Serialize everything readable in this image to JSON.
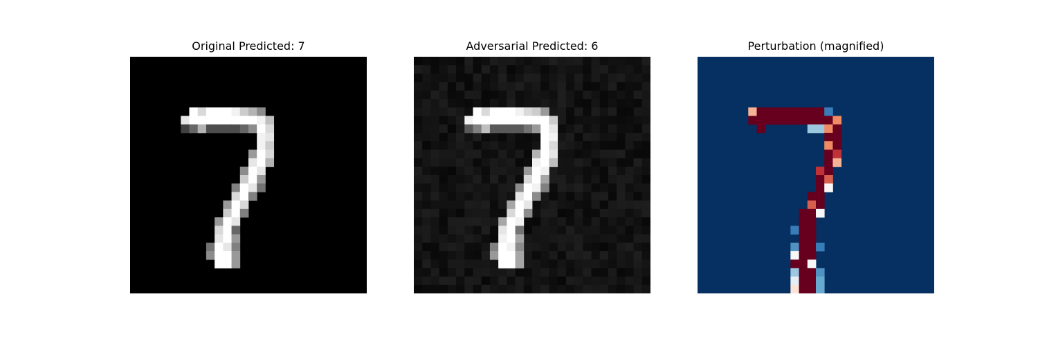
{
  "panels": [
    {
      "title": "Original Predicted: 7",
      "colormap": "gray",
      "background": "#000000",
      "pixels": [
        [
          6,
          7,
          1.0
        ],
        [
          6,
          8,
          0.85
        ],
        [
          6,
          9,
          1.0
        ],
        [
          6,
          10,
          1.0
        ],
        [
          6,
          11,
          1.0
        ],
        [
          6,
          12,
          0.95
        ],
        [
          6,
          13,
          0.8
        ],
        [
          6,
          14,
          0.7
        ],
        [
          6,
          15,
          0.55
        ],
        [
          7,
          6,
          0.9
        ],
        [
          7,
          7,
          1.0
        ],
        [
          7,
          8,
          1.0
        ],
        [
          7,
          9,
          1.0
        ],
        [
          7,
          10,
          1.0
        ],
        [
          7,
          11,
          1.0
        ],
        [
          7,
          12,
          1.0
        ],
        [
          7,
          13,
          1.0
        ],
        [
          7,
          14,
          1.0
        ],
        [
          7,
          15,
          0.95
        ],
        [
          7,
          16,
          0.75
        ],
        [
          8,
          6,
          0.25
        ],
        [
          8,
          7,
          0.4
        ],
        [
          8,
          8,
          0.7
        ],
        [
          8,
          9,
          0.3
        ],
        [
          8,
          10,
          0.3
        ],
        [
          8,
          11,
          0.3
        ],
        [
          8,
          12,
          0.3
        ],
        [
          8,
          13,
          0.4
        ],
        [
          8,
          14,
          0.55
        ],
        [
          8,
          15,
          1.0
        ],
        [
          8,
          16,
          0.85
        ],
        [
          9,
          15,
          0.95
        ],
        [
          9,
          16,
          0.9
        ],
        [
          10,
          15,
          0.95
        ],
        [
          10,
          16,
          0.8
        ],
        [
          11,
          14,
          0.6
        ],
        [
          11,
          15,
          1.0
        ],
        [
          11,
          16,
          0.85
        ],
        [
          12,
          14,
          0.9
        ],
        [
          12,
          15,
          1.0
        ],
        [
          12,
          16,
          0.7
        ],
        [
          13,
          13,
          0.55
        ],
        [
          13,
          14,
          1.0
        ],
        [
          13,
          15,
          0.9
        ],
        [
          14,
          13,
          0.8
        ],
        [
          14,
          14,
          1.0
        ],
        [
          14,
          15,
          0.6
        ],
        [
          15,
          12,
          0.5
        ],
        [
          15,
          13,
          1.0
        ],
        [
          15,
          14,
          0.9
        ],
        [
          15,
          15,
          0.45
        ],
        [
          16,
          12,
          0.85
        ],
        [
          16,
          13,
          1.0
        ],
        [
          16,
          14,
          0.5
        ],
        [
          17,
          11,
          0.6
        ],
        [
          17,
          12,
          1.0
        ],
        [
          17,
          13,
          0.85
        ],
        [
          18,
          11,
          0.8
        ],
        [
          18,
          12,
          1.0
        ],
        [
          18,
          13,
          0.5
        ],
        [
          19,
          10,
          0.6
        ],
        [
          19,
          11,
          1.0
        ],
        [
          19,
          12,
          0.9
        ],
        [
          20,
          10,
          0.85
        ],
        [
          20,
          11,
          1.0
        ],
        [
          20,
          12,
          0.4
        ],
        [
          21,
          10,
          0.9
        ],
        [
          21,
          11,
          1.0
        ],
        [
          21,
          12,
          0.6
        ],
        [
          22,
          9,
          0.45
        ],
        [
          22,
          10,
          1.0
        ],
        [
          22,
          11,
          0.9
        ],
        [
          22,
          12,
          0.5
        ],
        [
          23,
          9,
          0.55
        ],
        [
          23,
          10,
          1.0
        ],
        [
          23,
          11,
          1.0
        ],
        [
          23,
          12,
          0.6
        ],
        [
          24,
          10,
          1.0
        ],
        [
          24,
          11,
          1.0
        ],
        [
          24,
          12,
          0.6
        ]
      ]
    },
    {
      "title": "Adversarial Predicted: 6",
      "colormap": "gray",
      "background": "#141414",
      "pixels": [
        [
          6,
          7,
          1.0
        ],
        [
          6,
          8,
          0.85
        ],
        [
          6,
          9,
          1.0
        ],
        [
          6,
          10,
          1.0
        ],
        [
          6,
          11,
          1.0
        ],
        [
          6,
          12,
          0.95
        ],
        [
          6,
          13,
          0.85
        ],
        [
          6,
          14,
          0.8
        ],
        [
          6,
          15,
          0.6
        ],
        [
          7,
          6,
          0.95
        ],
        [
          7,
          7,
          1.0
        ],
        [
          7,
          8,
          1.0
        ],
        [
          7,
          9,
          1.0
        ],
        [
          7,
          10,
          1.0
        ],
        [
          7,
          11,
          1.0
        ],
        [
          7,
          12,
          1.0
        ],
        [
          7,
          13,
          1.0
        ],
        [
          7,
          14,
          1.0
        ],
        [
          7,
          15,
          1.0
        ],
        [
          7,
          16,
          0.8
        ],
        [
          8,
          6,
          0.35
        ],
        [
          8,
          7,
          0.5
        ],
        [
          8,
          8,
          0.75
        ],
        [
          8,
          9,
          0.35
        ],
        [
          8,
          10,
          0.35
        ],
        [
          8,
          11,
          0.35
        ],
        [
          8,
          12,
          0.35
        ],
        [
          8,
          13,
          0.45
        ],
        [
          8,
          14,
          0.6
        ],
        [
          8,
          15,
          1.0
        ],
        [
          8,
          16,
          0.9
        ],
        [
          9,
          15,
          1.0
        ],
        [
          9,
          16,
          0.95
        ],
        [
          10,
          15,
          1.0
        ],
        [
          10,
          16,
          0.85
        ],
        [
          11,
          14,
          0.7
        ],
        [
          11,
          15,
          1.0
        ],
        [
          11,
          16,
          0.9
        ],
        [
          12,
          14,
          0.95
        ],
        [
          12,
          15,
          1.0
        ],
        [
          12,
          16,
          0.75
        ],
        [
          13,
          13,
          0.6
        ],
        [
          13,
          14,
          1.0
        ],
        [
          13,
          15,
          0.95
        ],
        [
          14,
          13,
          0.85
        ],
        [
          14,
          14,
          1.0
        ],
        [
          14,
          15,
          0.65
        ],
        [
          15,
          12,
          0.55
        ],
        [
          15,
          13,
          1.0
        ],
        [
          15,
          14,
          0.95
        ],
        [
          15,
          15,
          0.5
        ],
        [
          16,
          12,
          0.9
        ],
        [
          16,
          13,
          1.0
        ],
        [
          16,
          14,
          0.55
        ],
        [
          17,
          11,
          0.65
        ],
        [
          17,
          12,
          1.0
        ],
        [
          17,
          13,
          0.9
        ],
        [
          18,
          11,
          0.85
        ],
        [
          18,
          12,
          1.0
        ],
        [
          18,
          13,
          0.55
        ],
        [
          19,
          10,
          0.65
        ],
        [
          19,
          11,
          1.0
        ],
        [
          19,
          12,
          0.95
        ],
        [
          20,
          10,
          0.9
        ],
        [
          20,
          11,
          1.0
        ],
        [
          20,
          12,
          0.45
        ],
        [
          21,
          10,
          0.95
        ],
        [
          21,
          11,
          1.0
        ],
        [
          21,
          12,
          0.65
        ],
        [
          22,
          9,
          0.5
        ],
        [
          22,
          10,
          1.0
        ],
        [
          22,
          11,
          0.95
        ],
        [
          22,
          12,
          0.55
        ],
        [
          23,
          9,
          0.6
        ],
        [
          23,
          10,
          1.0
        ],
        [
          23,
          11,
          1.0
        ],
        [
          23,
          12,
          0.65
        ],
        [
          24,
          10,
          1.0
        ],
        [
          24,
          11,
          1.0
        ],
        [
          24,
          12,
          0.65
        ]
      ]
    },
    {
      "title": "Perturbation (magnified)",
      "colormap": "RdBu_r",
      "background": "#053061",
      "pixels": [
        [
          6,
          6,
          0.7
        ],
        [
          6,
          7,
          1.0
        ],
        [
          6,
          8,
          1.0
        ],
        [
          6,
          9,
          1.0
        ],
        [
          6,
          10,
          1.0
        ],
        [
          6,
          11,
          1.0
        ],
        [
          6,
          12,
          1.0
        ],
        [
          6,
          13,
          1.0
        ],
        [
          6,
          14,
          1.0
        ],
        [
          6,
          15,
          0.2
        ],
        [
          7,
          6,
          1.0
        ],
        [
          7,
          7,
          1.0
        ],
        [
          7,
          8,
          1.0
        ],
        [
          7,
          9,
          1.0
        ],
        [
          7,
          10,
          1.0
        ],
        [
          7,
          11,
          1.0
        ],
        [
          7,
          12,
          1.0
        ],
        [
          7,
          13,
          1.0
        ],
        [
          7,
          14,
          1.0
        ],
        [
          7,
          15,
          1.0
        ],
        [
          7,
          16,
          0.75
        ],
        [
          8,
          7,
          1.0
        ],
        [
          8,
          13,
          0.35
        ],
        [
          8,
          14,
          0.35
        ],
        [
          8,
          15,
          0.75
        ],
        [
          8,
          16,
          1.0
        ],
        [
          9,
          15,
          1.0
        ],
        [
          9,
          16,
          1.0
        ],
        [
          10,
          15,
          0.75
        ],
        [
          10,
          16,
          1.0
        ],
        [
          11,
          15,
          1.0
        ],
        [
          11,
          16,
          0.85
        ],
        [
          12,
          15,
          1.0
        ],
        [
          12,
          16,
          0.7
        ],
        [
          13,
          14,
          0.85
        ],
        [
          13,
          15,
          1.0
        ],
        [
          14,
          14,
          1.0
        ],
        [
          14,
          15,
          0.8
        ],
        [
          15,
          14,
          1.0
        ],
        [
          15,
          15,
          0.5
        ],
        [
          16,
          13,
          1.0
        ],
        [
          16,
          14,
          1.0
        ],
        [
          17,
          13,
          0.8
        ],
        [
          17,
          14,
          1.0
        ],
        [
          18,
          12,
          1.0
        ],
        [
          18,
          13,
          1.0
        ],
        [
          18,
          14,
          0.5
        ],
        [
          19,
          12,
          1.0
        ],
        [
          19,
          13,
          1.0
        ],
        [
          20,
          11,
          0.2
        ],
        [
          20,
          12,
          1.0
        ],
        [
          20,
          13,
          1.0
        ],
        [
          21,
          12,
          1.0
        ],
        [
          21,
          13,
          1.0
        ],
        [
          22,
          11,
          0.25
        ],
        [
          22,
          12,
          1.0
        ],
        [
          22,
          13,
          1.0
        ],
        [
          22,
          14,
          0.2
        ],
        [
          23,
          11,
          0.5
        ],
        [
          23,
          12,
          1.0
        ],
        [
          23,
          13,
          1.0
        ],
        [
          24,
          11,
          1.0
        ],
        [
          24,
          12,
          1.0
        ],
        [
          24,
          13,
          0.5
        ],
        [
          25,
          11,
          0.35
        ],
        [
          25,
          12,
          1.0
        ],
        [
          25,
          13,
          1.0
        ],
        [
          25,
          14,
          0.25
        ],
        [
          26,
          11,
          0.45
        ],
        [
          26,
          12,
          1.0
        ],
        [
          26,
          13,
          1.0
        ],
        [
          26,
          14,
          0.3
        ],
        [
          27,
          11,
          0.6
        ],
        [
          27,
          12,
          1.0
        ],
        [
          27,
          13,
          1.0
        ],
        [
          27,
          14,
          0.3
        ]
      ]
    }
  ]
}
